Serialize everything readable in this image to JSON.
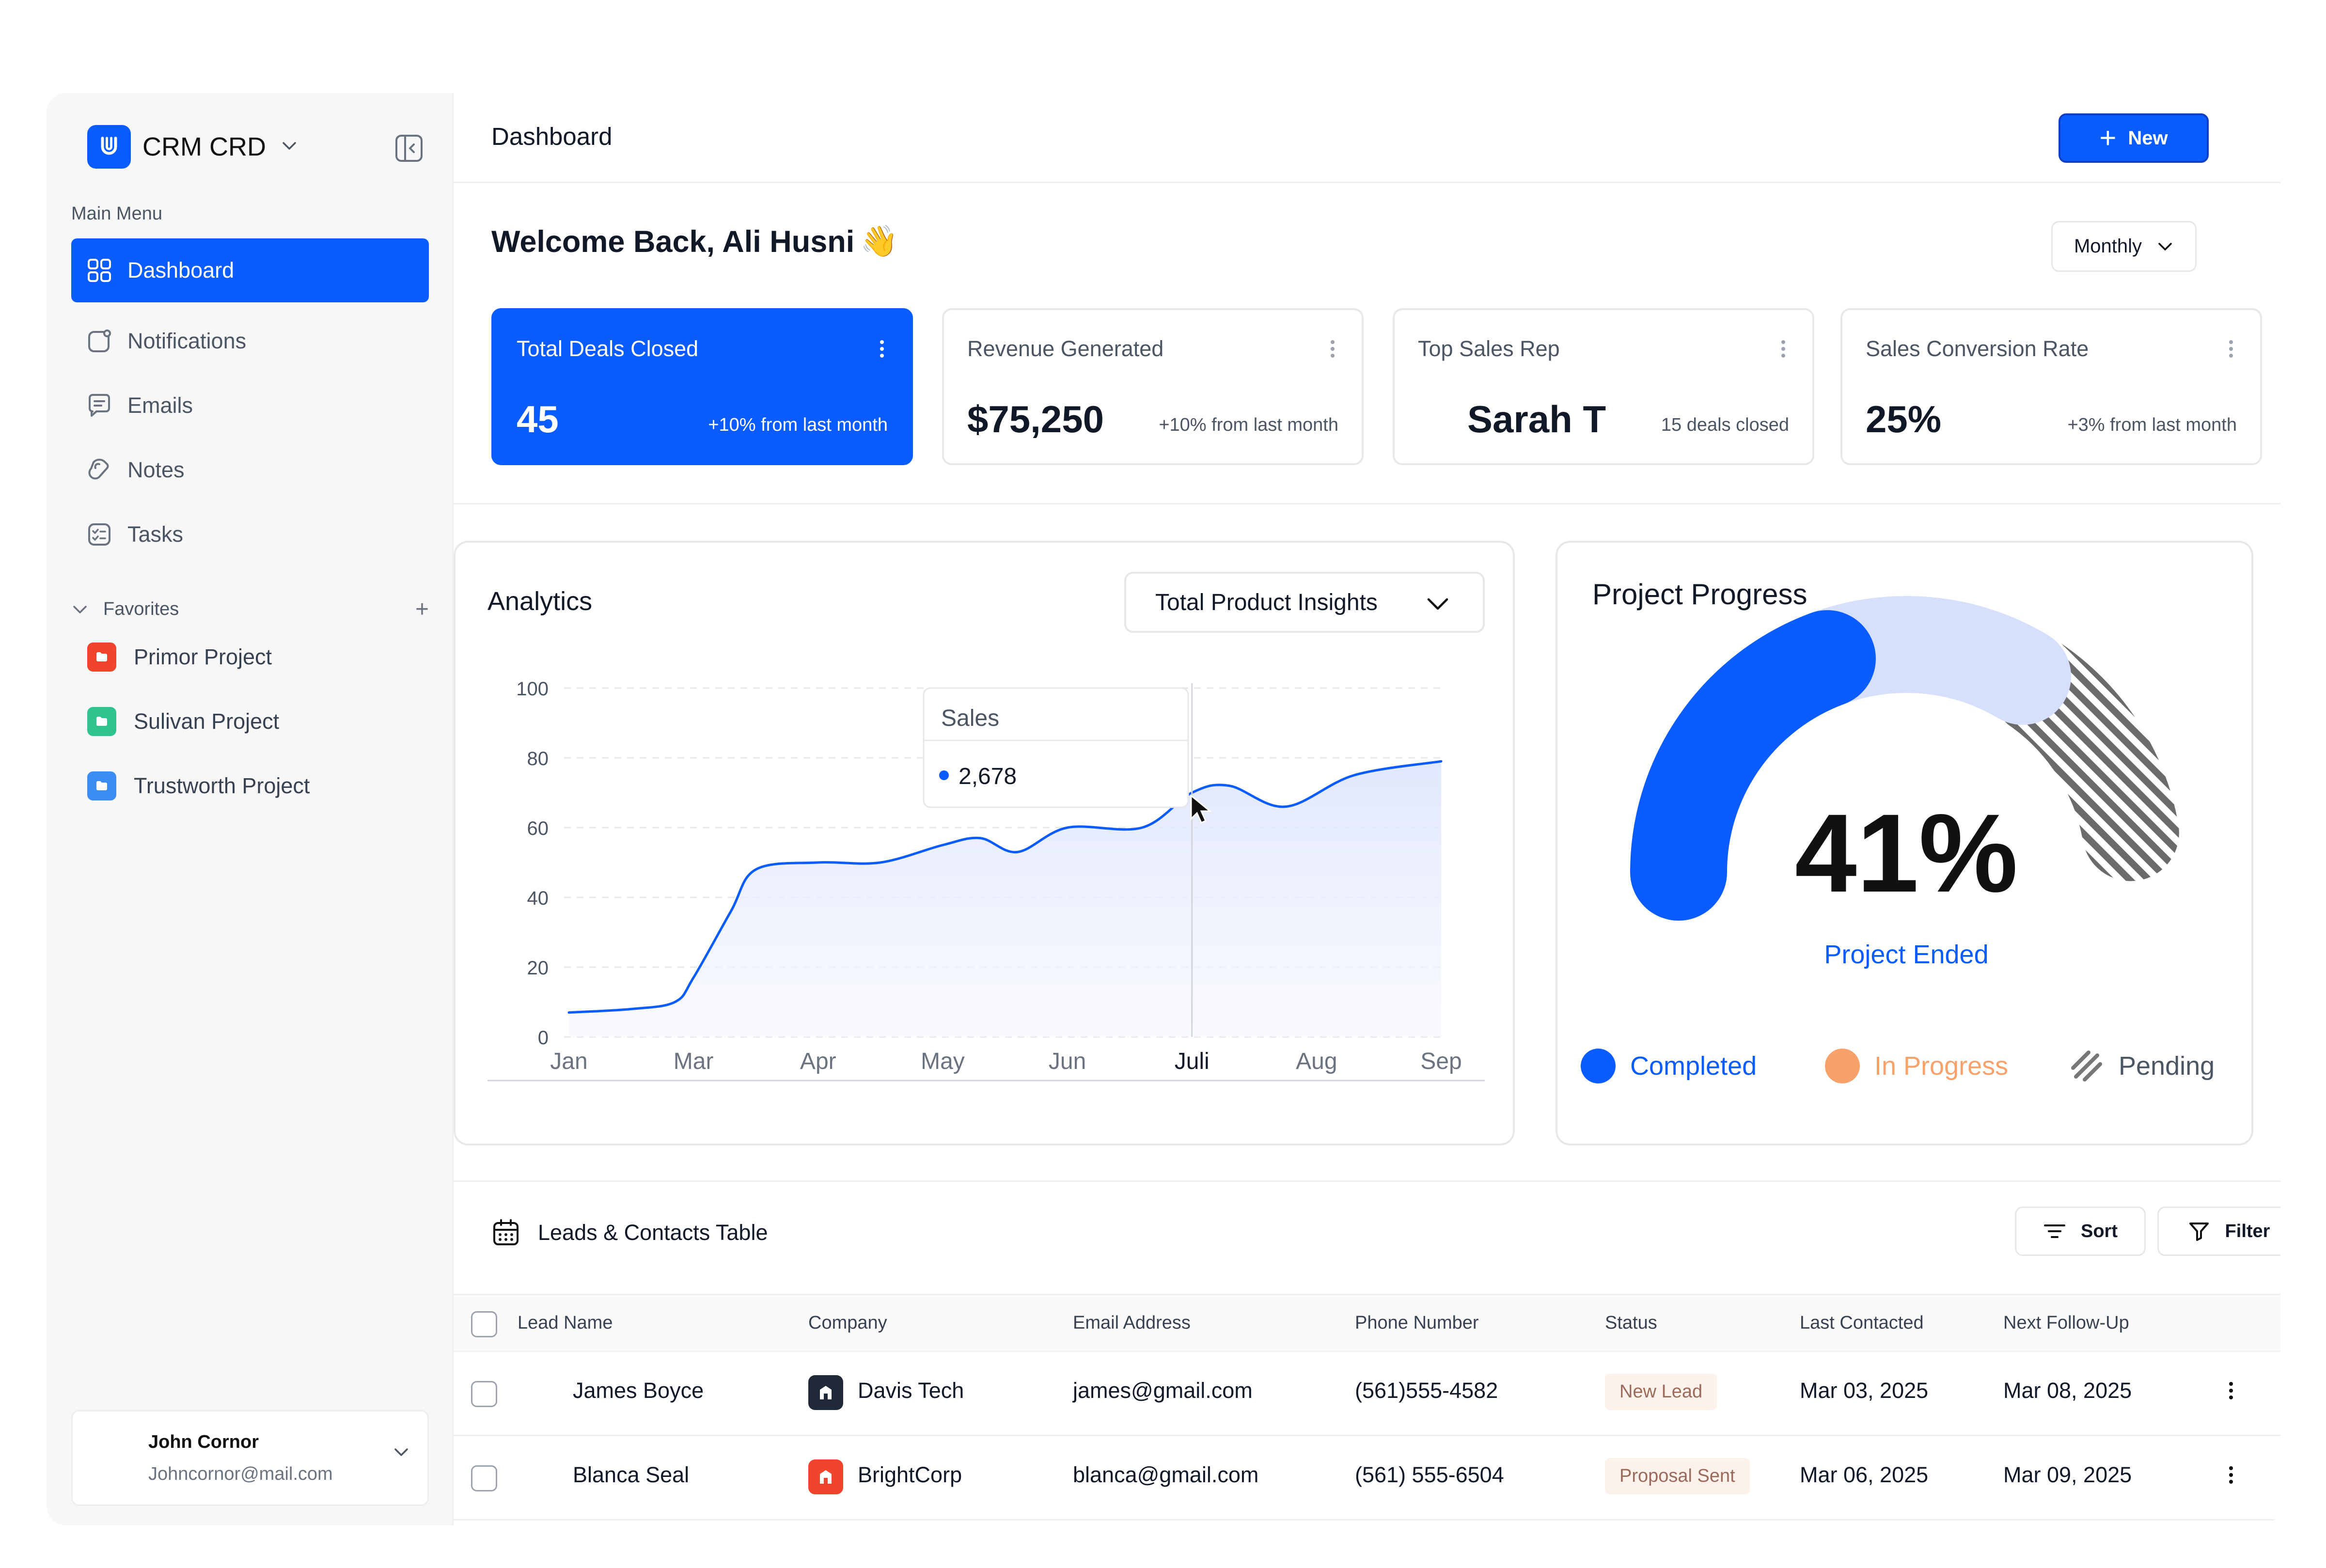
{
  "app": {
    "name": "CRM CRD"
  },
  "sidebar": {
    "menu_heading": "Main Menu",
    "items": [
      {
        "label": "Dashboard",
        "icon": "grid-icon",
        "active": true
      },
      {
        "label": "Notifications",
        "icon": "notification-icon",
        "active": false
      },
      {
        "label": "Emails",
        "icon": "message-icon",
        "active": false
      },
      {
        "label": "Notes",
        "icon": "note-icon",
        "active": false
      },
      {
        "label": "Tasks",
        "icon": "tasks-icon",
        "active": false
      }
    ],
    "favorites_heading": "Favorites",
    "favorites_add": "+",
    "favorites": [
      {
        "label": "Primor Project",
        "color": "#f0442c"
      },
      {
        "label": "Sulivan Project",
        "color": "#2fc48d"
      },
      {
        "label": "Trustworth Project",
        "color": "#3b8cf5"
      }
    ],
    "profile": {
      "name": "John Cornor",
      "email": "Johncornor@mail.com"
    }
  },
  "header": {
    "title": "Dashboard",
    "new_label": "New"
  },
  "welcome": {
    "text": "Welcome Back, Ali Husni",
    "emoji": "👋",
    "period": "Monthly"
  },
  "stats": [
    {
      "label": "Total Deals Closed",
      "value": "45",
      "sub": "+10% from last month",
      "primary": true
    },
    {
      "label": "Revenue Generated",
      "value": "$75,250",
      "sub": "+10% from last month",
      "primary": false
    },
    {
      "label": "Top Sales Rep",
      "value": "Sarah T",
      "sub": "15 deals closed",
      "primary": false
    },
    {
      "label": "Sales Conversion Rate",
      "value": "25%",
      "sub": "+3% from last month",
      "primary": false
    }
  ],
  "analytics": {
    "title": "Analytics",
    "dropdown": "Total Product Insights",
    "tooltip": {
      "title": "Sales",
      "value": "2,678"
    }
  },
  "chart_data": {
    "type": "area",
    "categories": [
      "Jan",
      "Mar",
      "Apr",
      "May",
      "Jun",
      "Juli",
      "Aug",
      "Sep"
    ],
    "highlighted_category": "Juli",
    "x": [
      0.0,
      0.5,
      0.85,
      1.0,
      1.3,
      1.5,
      2.0,
      2.5,
      3.0,
      3.3,
      3.6,
      4.0,
      4.6,
      5.0,
      5.3,
      5.75,
      6.3,
      7.0
    ],
    "y": [
      7,
      8,
      10,
      17,
      36,
      48,
      50,
      50,
      55,
      57,
      53,
      60,
      60,
      70,
      72,
      66,
      75,
      79
    ],
    "ylim": [
      0,
      100
    ],
    "yticks": [
      0,
      20,
      40,
      60,
      80,
      100
    ],
    "grid": true,
    "colors": {
      "line": "#0b5cff",
      "fill": "#e8eefe"
    }
  },
  "project_progress": {
    "title": "Project Progress",
    "percent_label": "41%",
    "caption": "Project Ended",
    "completed_fraction": 0.41,
    "in_progress_fraction": 0.3,
    "pending_fraction": 0.29,
    "legend": [
      {
        "label": "Completed",
        "color": "#0b5cff"
      },
      {
        "label": "In Progress",
        "color": "#f7a26b"
      },
      {
        "label": "Pending",
        "color": "#777777"
      }
    ]
  },
  "table": {
    "title": "Leads & Contacts Table",
    "sort_label": "Sort",
    "filter_label": "Filter",
    "columns": [
      "Lead Name",
      "Company",
      "Email Address",
      "Phone Number",
      "Status",
      "Last Contacted",
      "Next Follow-Up"
    ],
    "rows": [
      {
        "name": "James Boyce",
        "company": "Davis Tech",
        "company_color": "#1f2937",
        "email": "james@gmail.com",
        "phone": "(561)555-4582",
        "status": "New Lead",
        "last": "Mar 03, 2025",
        "next": "Mar 08, 2025"
      },
      {
        "name": "Blanca Seal",
        "company": "BrightCorp",
        "company_color": "#f0442c",
        "email": "blanca@gmail.com",
        "phone": "(561) 555-6504",
        "status": "Proposal Sent",
        "last": "Mar 06, 2025",
        "next": "Mar 09, 2025"
      }
    ]
  }
}
